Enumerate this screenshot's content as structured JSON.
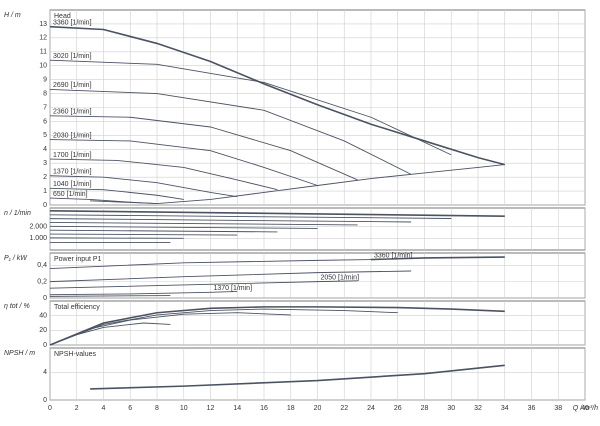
{
  "chart_data": [
    {
      "type": "line",
      "y_label": "H / m",
      "label": "Head",
      "color": "#4b5362",
      "grid": true,
      "ylim": [
        0,
        14
      ],
      "yticks": [
        0,
        1,
        2,
        3,
        4,
        5,
        6,
        7,
        8,
        9,
        10,
        11,
        12,
        13
      ],
      "series": [
        {
          "name": "3360 [1/min]",
          "x": [
            0,
            4,
            8,
            12,
            16,
            20,
            24,
            28,
            32,
            34
          ],
          "values": [
            12.8,
            12.6,
            11.6,
            10.3,
            8.7,
            7.2,
            5.8,
            4.6,
            3.4,
            2.9
          ]
        },
        {
          "name": "3020 [1/min]",
          "x": [
            0,
            8,
            16,
            24,
            30
          ],
          "values": [
            10.4,
            10.1,
            8.8,
            6.3,
            3.6
          ]
        },
        {
          "name": "2690 [1/min]",
          "x": [
            0,
            8,
            16,
            22,
            27
          ],
          "values": [
            8.3,
            8.0,
            6.8,
            4.6,
            2.2
          ]
        },
        {
          "name": "2360 [1/min]",
          "x": [
            0,
            6,
            12,
            18,
            23
          ],
          "values": [
            6.4,
            6.3,
            5.6,
            3.9,
            1.8
          ]
        },
        {
          "name": "2030 [1/min]",
          "x": [
            0,
            6,
            12,
            16,
            20
          ],
          "values": [
            4.7,
            4.6,
            3.9,
            2.7,
            1.4
          ]
        },
        {
          "name": "1700 [1/min]",
          "x": [
            0,
            5,
            10,
            14,
            17
          ],
          "values": [
            3.3,
            3.2,
            2.7,
            1.8,
            1.1
          ]
        },
        {
          "name": "1370 [1/min]",
          "x": [
            0,
            4,
            8,
            12,
            14
          ],
          "values": [
            2.1,
            2.0,
            1.6,
            0.9,
            0.6
          ]
        },
        {
          "name": "1040 [1/min]",
          "x": [
            0,
            4,
            8,
            10
          ],
          "values": [
            1.2,
            1.1,
            0.7,
            0.4
          ]
        },
        {
          "name": "650 [1/min]",
          "x": [
            0,
            3,
            6,
            8
          ],
          "values": [
            0.5,
            0.4,
            0.2,
            0.1
          ]
        },
        {
          "x": [
            3,
            8,
            12,
            16,
            20,
            24,
            28,
            32,
            34
          ],
          "values": [
            0.3,
            0.1,
            0.4,
            0.9,
            1.4,
            1.9,
            2.3,
            2.7,
            2.9
          ]
        }
      ]
    },
    {
      "type": "line",
      "y_label": "n / 1/min",
      "color": "#4b5362",
      "grid": true,
      "ylim": [
        0,
        3600
      ],
      "yticks": [
        {
          "value": 1000,
          "label": "1.000"
        },
        {
          "value": 2000,
          "label": "2.000"
        }
      ],
      "series": [
        {
          "x": [
            0,
            34
          ],
          "values": [
            3360,
            2900
          ]
        },
        {
          "x": [
            0,
            30
          ],
          "values": [
            3020,
            2700
          ]
        },
        {
          "x": [
            0,
            27
          ],
          "values": [
            2690,
            2400
          ]
        },
        {
          "x": [
            0,
            23
          ],
          "values": [
            2360,
            2150
          ]
        },
        {
          "x": [
            0,
            20
          ],
          "values": [
            2030,
            1850
          ]
        },
        {
          "x": [
            0,
            17
          ],
          "values": [
            1700,
            1550
          ]
        },
        {
          "x": [
            0,
            14
          ],
          "values": [
            1370,
            1280
          ]
        },
        {
          "x": [
            0,
            10
          ],
          "values": [
            1040,
            1000
          ]
        },
        {
          "x": [
            0,
            9
          ],
          "values": [
            650,
            650
          ]
        }
      ]
    },
    {
      "type": "line",
      "y_label": "P₁ / kW",
      "label": "Power input P1",
      "color": "#4b5362",
      "grid": true,
      "ylim": [
        0,
        0.55
      ],
      "yticks": [
        0,
        {
          "value": 0.2,
          "label": "0,2"
        },
        {
          "value": 0.4,
          "label": "0,4"
        }
      ],
      "series": [
        {
          "name": "3360 [1/min]",
          "x": [
            24,
            28,
            34
          ],
          "values": [
            0.47,
            0.49,
            0.5
          ]
        },
        {
          "x": [
            0,
            10,
            20,
            24
          ],
          "values": [
            0.36,
            0.43,
            0.46,
            0.47
          ]
        },
        {
          "x": [
            0,
            10,
            20,
            27
          ],
          "values": [
            0.2,
            0.26,
            0.31,
            0.33
          ]
        },
        {
          "name": "2050 [1/min]",
          "x": [
            20,
            23
          ],
          "values": [
            0.2,
            0.21
          ]
        },
        {
          "x": [
            0,
            10,
            20
          ],
          "values": [
            0.12,
            0.16,
            0.2
          ]
        },
        {
          "name": "1370 [1/min]",
          "x": [
            12,
            14
          ],
          "values": [
            0.07,
            0.08
          ]
        },
        {
          "x": [
            0,
            6,
            12
          ],
          "values": [
            0.04,
            0.05,
            0.07
          ]
        },
        {
          "x": [
            0,
            9
          ],
          "values": [
            0.02,
            0.03
          ]
        }
      ]
    },
    {
      "type": "line",
      "y_label": "η tot / %",
      "label": "Total efficiency",
      "color": "#4b5362",
      "grid": true,
      "ylim": [
        0,
        60
      ],
      "yticks": [
        0,
        20,
        40
      ],
      "series": [
        {
          "x": [
            0,
            4,
            8,
            12,
            16,
            20,
            26,
            30,
            34
          ],
          "values": [
            0,
            30,
            44,
            50,
            52,
            52,
            51,
            49,
            46
          ]
        },
        {
          "x": [
            0,
            4,
            8,
            12,
            16,
            22,
            26
          ],
          "values": [
            0,
            28,
            41,
            47,
            49,
            47,
            44
          ]
        },
        {
          "x": [
            0,
            3,
            6,
            10,
            14,
            18
          ],
          "values": [
            0,
            22,
            34,
            42,
            44,
            41
          ]
        },
        {
          "x": [
            0,
            2,
            4,
            7,
            9
          ],
          "values": [
            0,
            14,
            24,
            30,
            28
          ]
        }
      ]
    },
    {
      "type": "line",
      "y_label": "NPSH / m",
      "label": "NPSH-values",
      "color": "#4b5362",
      "grid": true,
      "ylim": [
        0,
        7.5
      ],
      "yticks": [
        0,
        4
      ],
      "xlim": [
        0,
        40
      ],
      "xticks": [
        0,
        2,
        4,
        6,
        8,
        10,
        12,
        14,
        16,
        18,
        20,
        22,
        24,
        26,
        28,
        30,
        32,
        34,
        36,
        38,
        40
      ],
      "x_label": "Q / m³/h",
      "series": [
        {
          "x": [
            3,
            10,
            20,
            28,
            34
          ],
          "values": [
            1.6,
            2.0,
            2.8,
            3.8,
            5.0
          ]
        }
      ]
    }
  ]
}
